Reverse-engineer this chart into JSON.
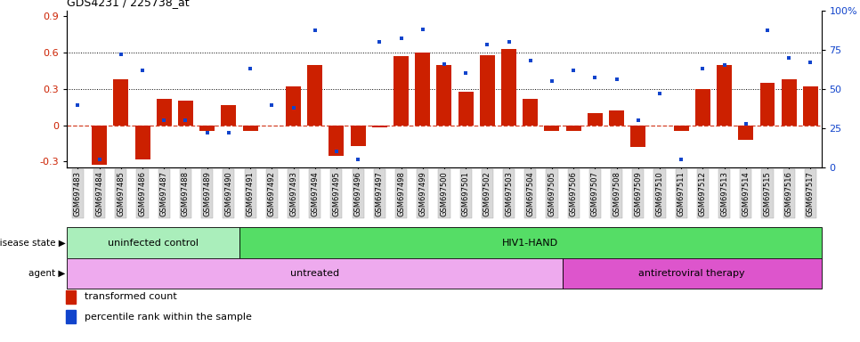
{
  "title": "GDS4231 / 225738_at",
  "samples": [
    "GSM697483",
    "GSM697484",
    "GSM697485",
    "GSM697486",
    "GSM697487",
    "GSM697488",
    "GSM697489",
    "GSM697490",
    "GSM697491",
    "GSM697492",
    "GSM697493",
    "GSM697494",
    "GSM697495",
    "GSM697496",
    "GSM697497",
    "GSM697498",
    "GSM697499",
    "GSM697500",
    "GSM697501",
    "GSM697502",
    "GSM697503",
    "GSM697504",
    "GSM697505",
    "GSM697506",
    "GSM697507",
    "GSM697508",
    "GSM697509",
    "GSM697510",
    "GSM697511",
    "GSM697512",
    "GSM697513",
    "GSM697514",
    "GSM697515",
    "GSM697516",
    "GSM697517"
  ],
  "bar_values": [
    0.0,
    -0.33,
    0.38,
    -0.28,
    0.22,
    0.2,
    -0.05,
    0.17,
    -0.05,
    0.0,
    0.32,
    0.5,
    -0.25,
    -0.17,
    -0.02,
    0.57,
    0.6,
    0.5,
    0.28,
    0.58,
    0.63,
    0.22,
    -0.05,
    -0.05,
    0.1,
    0.12,
    -0.18,
    0.0,
    -0.05,
    0.3,
    0.5,
    -0.12,
    0.35,
    0.38,
    0.32
  ],
  "dot_values_pct": [
    40,
    5,
    72,
    62,
    30,
    30,
    22,
    22,
    63,
    40,
    38,
    87,
    10,
    5,
    80,
    82,
    88,
    66,
    60,
    78,
    80,
    68,
    55,
    62,
    57,
    56,
    30,
    47,
    5,
    63,
    65,
    28,
    87,
    70,
    67
  ],
  "bar_color": "#cc2000",
  "dot_color": "#1144cc",
  "ylim_left": [
    -0.35,
    0.95
  ],
  "ylim_right": [
    0,
    100
  ],
  "yticks_left": [
    -0.3,
    0.0,
    0.3,
    0.6,
    0.9
  ],
  "yticklabels_left": [
    "-0.3",
    "0",
    "0.3",
    "0.6",
    "0.9"
  ],
  "yticks_right": [
    0,
    25,
    50,
    75,
    100
  ],
  "yticklabels_right": [
    "0",
    "25",
    "50",
    "75",
    "100%"
  ],
  "hlines": [
    0.3,
    0.6
  ],
  "disease_state_groups": [
    {
      "label": "uninfected control",
      "start": 0,
      "end": 8,
      "color": "#aaeebb"
    },
    {
      "label": "HIV1-HAND",
      "start": 8,
      "end": 35,
      "color": "#55dd66"
    }
  ],
  "agent_groups": [
    {
      "label": "untreated",
      "start": 0,
      "end": 23,
      "color": "#eeaaee"
    },
    {
      "label": "antiretroviral therapy",
      "start": 23,
      "end": 35,
      "color": "#dd55cc"
    }
  ],
  "legend_items": [
    {
      "color": "#cc2000",
      "label": "transformed count"
    },
    {
      "color": "#1144cc",
      "label": "percentile rank within the sample"
    }
  ],
  "disease_state_label": "disease state",
  "agent_label": "agent",
  "figsize": [
    9.66,
    3.84
  ],
  "dpi": 100
}
